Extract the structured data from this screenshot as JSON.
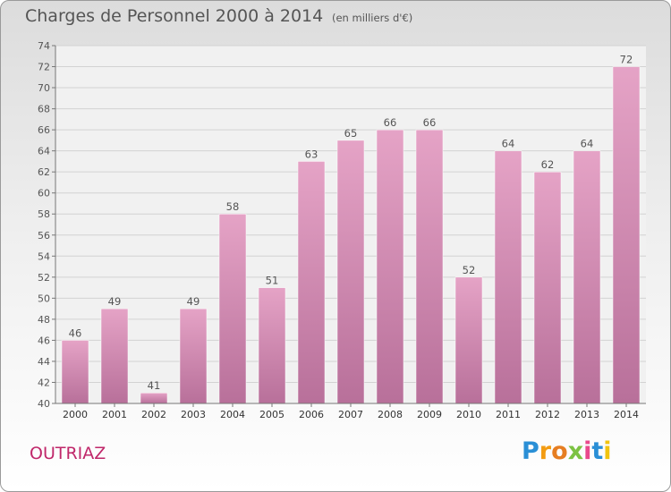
{
  "title": "Charges de Personnel 2000 à 2014",
  "unit_note": "(en milliers d'€)",
  "commune": "OUTRIAZ",
  "logo": {
    "letters": [
      "P",
      "r",
      "o",
      "x",
      "i",
      "t",
      "i"
    ],
    "colors": [
      "#2a8fd6",
      "#f39c12",
      "#e67e22",
      "#7cc242",
      "#e9498c",
      "#2a8fd6",
      "#f1c40f"
    ]
  },
  "colors": {
    "bar_top": "#e5a3c6",
    "bar_bottom": "#b8709a",
    "commune_text": "#c0276a",
    "text": "#555555",
    "plot_bg": "#f1f1f1"
  },
  "chart_data": {
    "type": "bar",
    "categories": [
      "2000",
      "2001",
      "2002",
      "2003",
      "2004",
      "2005",
      "2006",
      "2007",
      "2008",
      "2009",
      "2010",
      "2011",
      "2012",
      "2013",
      "2014"
    ],
    "values": [
      46,
      49,
      41,
      49,
      58,
      51,
      63,
      65,
      66,
      66,
      52,
      64,
      62,
      64,
      72
    ],
    "ylim": [
      40,
      74
    ],
    "yticks": [
      40,
      42,
      44,
      46,
      48,
      50,
      52,
      54,
      56,
      58,
      60,
      62,
      64,
      66,
      68,
      70,
      72,
      74
    ],
    "grid": true,
    "xlabel": "",
    "ylabel": ""
  }
}
